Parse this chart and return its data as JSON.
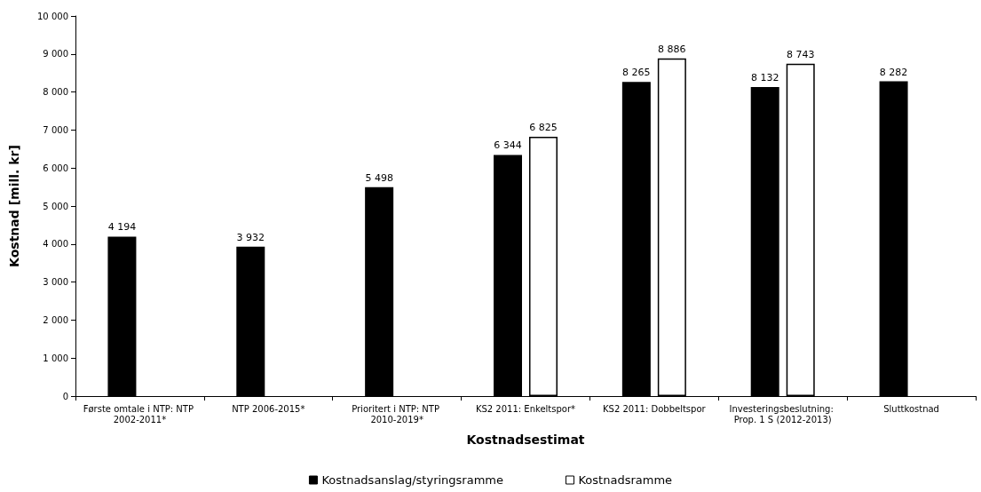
{
  "chart_data": {
    "type": "bar",
    "xlabel": "Kostnadsestimat",
    "ylabel": "Kostnad [mill. kr]",
    "categories": [
      "Første omtale i NTP: NTP 2002-2011*",
      "NTP 2006-2015*",
      "Prioritert i NTP: NTP 2010-2019*",
      "KS2 2011: Enkeltspor*",
      "KS2 2011: Dobbeltspor",
      "Investeringsbeslutning: Prop. 1 S (2012-2013)",
      "Sluttkostnad"
    ],
    "series": [
      {
        "name": "Kostnadsanslag/styringsramme",
        "color": "#000000",
        "values": [
          4194,
          3932,
          5498,
          6344,
          8265,
          8132,
          8282
        ],
        "value_labels": [
          "4 194",
          "3 932",
          "5 498",
          "6 344",
          "8 265",
          "8 132",
          "8 282"
        ]
      },
      {
        "name": "Kostnadsramme",
        "color": "#ffffff",
        "values": [
          null,
          null,
          null,
          6825,
          8886,
          8743,
          null
        ],
        "value_labels": [
          null,
          null,
          null,
          "6 825",
          "8 886",
          "8 743",
          null
        ]
      }
    ],
    "ylim": [
      0,
      10000
    ],
    "yticks": [
      0,
      {
        "value": 1000,
        "label": "1 000"
      },
      {
        "value": 2000,
        "label": "2 000"
      },
      {
        "value": 3000,
        "label": "3 000"
      },
      {
        "value": 4000,
        "label": "4 000"
      },
      {
        "value": 5000,
        "label": "5 000"
      },
      {
        "value": 6000,
        "label": "6 000"
      },
      {
        "value": 7000,
        "label": "7 000"
      },
      {
        "value": 8000,
        "label": "8 000"
      },
      {
        "value": 9000,
        "label": "9 000"
      },
      {
        "value": 10000,
        "label": "10 000"
      }
    ],
    "grid": false,
    "legend": "bottom"
  }
}
